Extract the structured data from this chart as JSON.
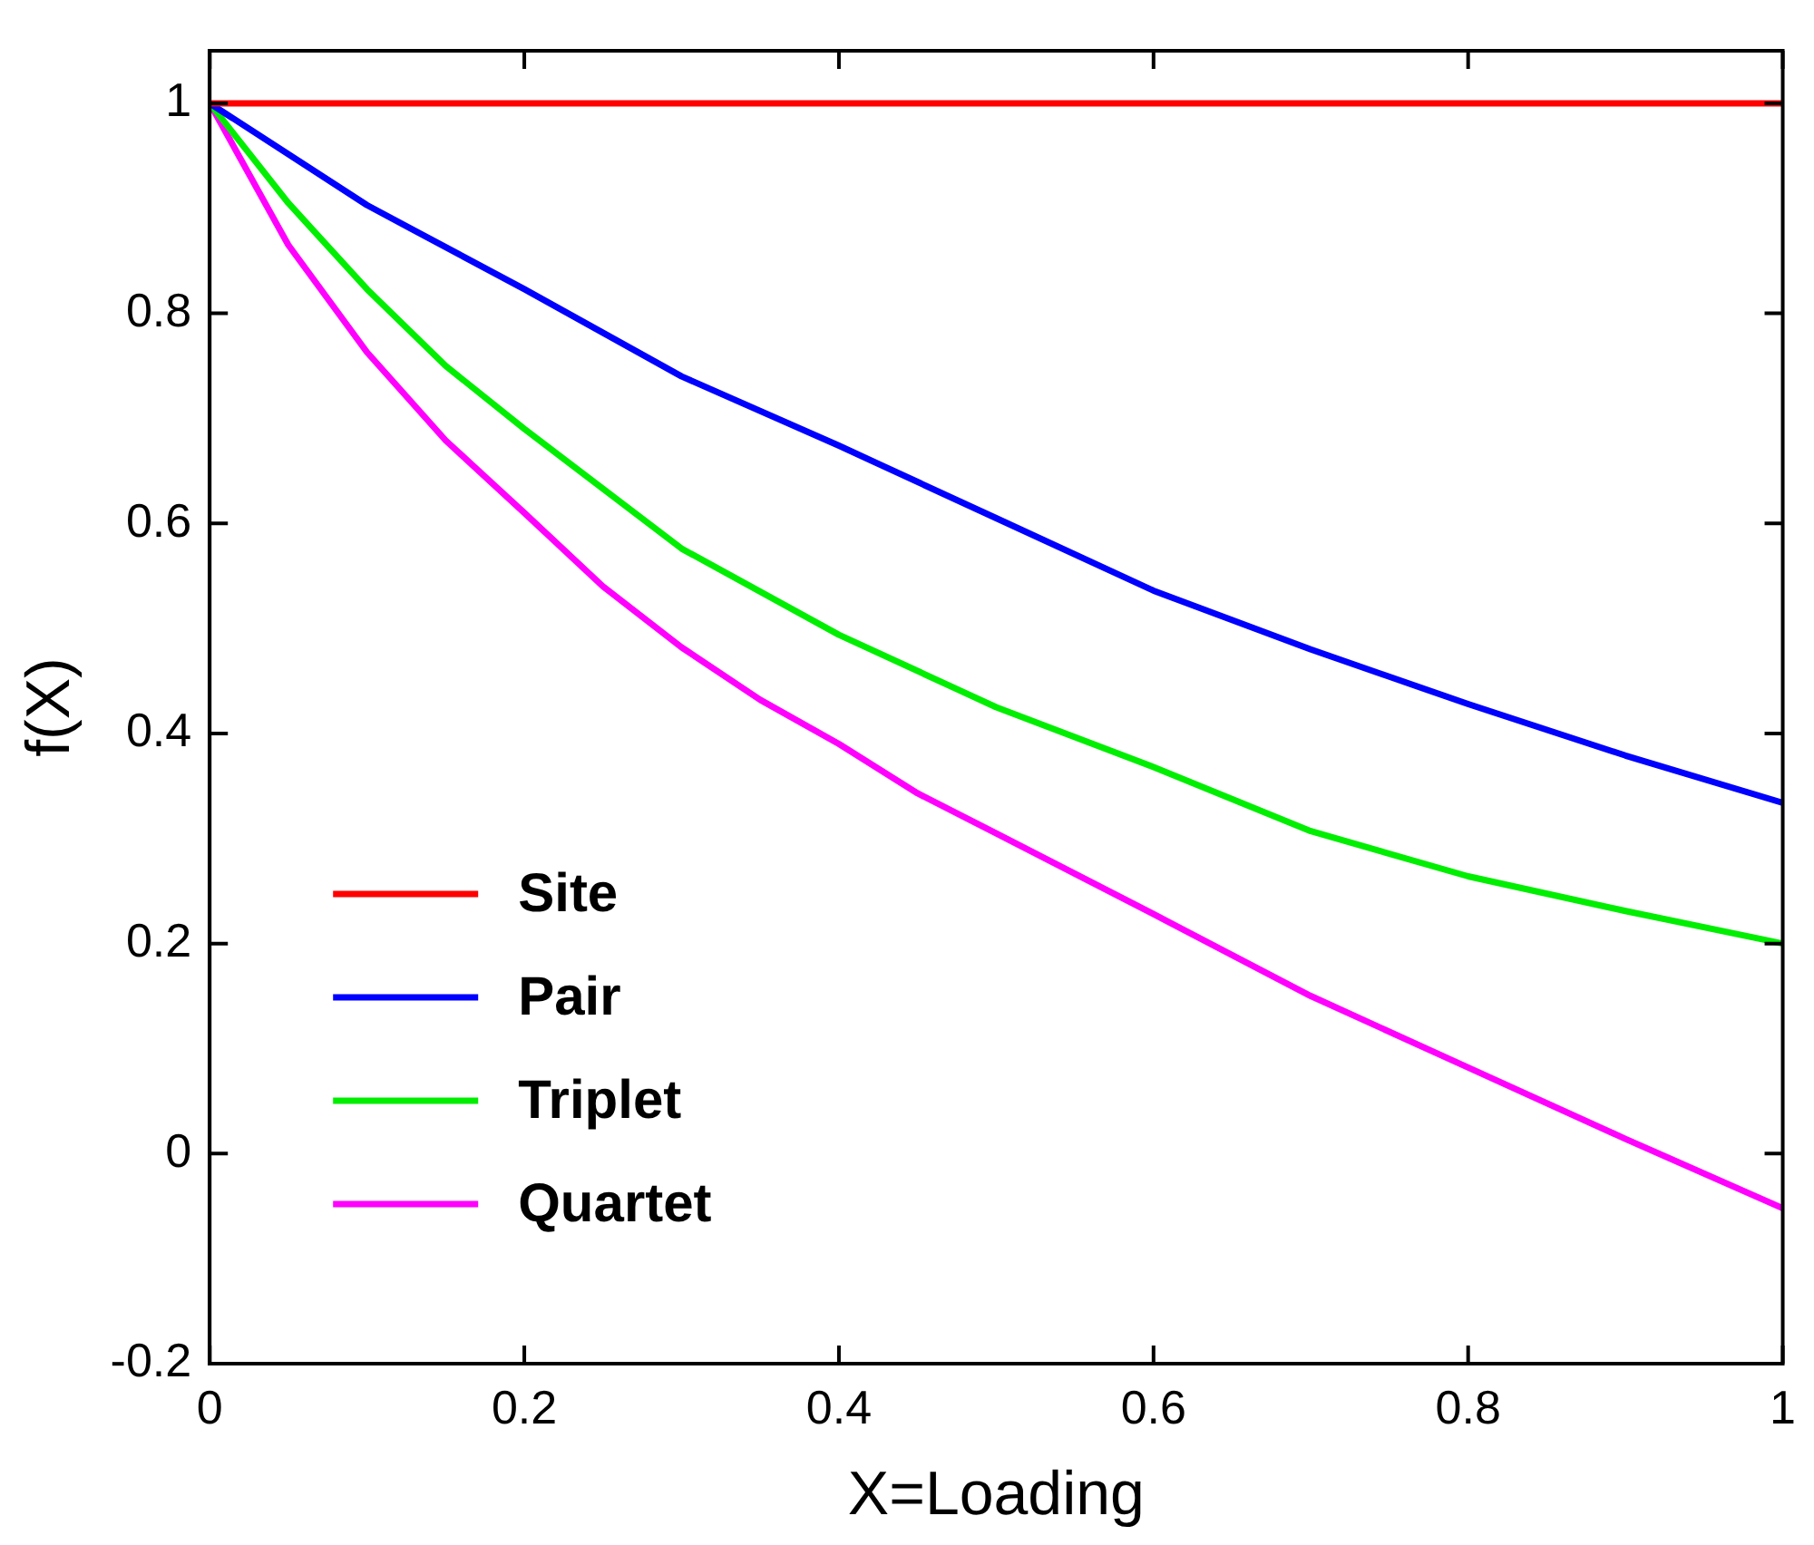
{
  "chart_data": {
    "type": "line",
    "xlabel": "X=Loading",
    "ylabel": "f(X)",
    "xlim": [
      0,
      1
    ],
    "ylim": [
      -0.2,
      1.05
    ],
    "xticks": [
      0,
      0.2,
      0.4,
      0.6,
      0.8,
      1
    ],
    "yticks": [
      -0.2,
      0,
      0.2,
      0.4,
      0.6,
      0.8,
      1
    ],
    "grid": false,
    "legend": "bottom left",
    "line_style": "solid",
    "marker": "none",
    "series": [
      {
        "name": "Site",
        "color": "#ff0000",
        "x": [
          0,
          1
        ],
        "values": [
          1,
          1
        ]
      },
      {
        "name": "Pair",
        "color": "#0000ff",
        "x": [
          0,
          0.1,
          0.2,
          0.3,
          0.4,
          0.5,
          0.6,
          0.7,
          0.8,
          0.9,
          1
        ],
        "values": [
          1,
          0.903,
          0.823,
          0.74,
          0.674,
          0.605,
          0.536,
          0.48,
          0.428,
          0.379,
          0.334
        ]
      },
      {
        "name": "Triplet",
        "color": "#00ee00",
        "x": [
          0,
          0.05,
          0.1,
          0.15,
          0.2,
          0.3,
          0.4,
          0.5,
          0.6,
          0.7,
          0.8,
          0.9,
          1
        ],
        "values": [
          1,
          0.905,
          0.823,
          0.75,
          0.69,
          0.576,
          0.494,
          0.425,
          0.368,
          0.307,
          0.264,
          0.231,
          0.2
        ]
      },
      {
        "name": "Quartet",
        "color": "#ff00ff",
        "x": [
          0,
          0.05,
          0.1,
          0.15,
          0.2,
          0.25,
          0.3,
          0.35,
          0.4,
          0.45,
          0.5,
          0.6,
          0.7,
          0.8,
          0.9,
          1
        ],
        "values": [
          1,
          0.865,
          0.763,
          0.679,
          0.61,
          0.54,
          0.482,
          0.432,
          0.39,
          0.343,
          0.305,
          0.228,
          0.15,
          0.082,
          0.014,
          -0.052
        ]
      }
    ]
  }
}
